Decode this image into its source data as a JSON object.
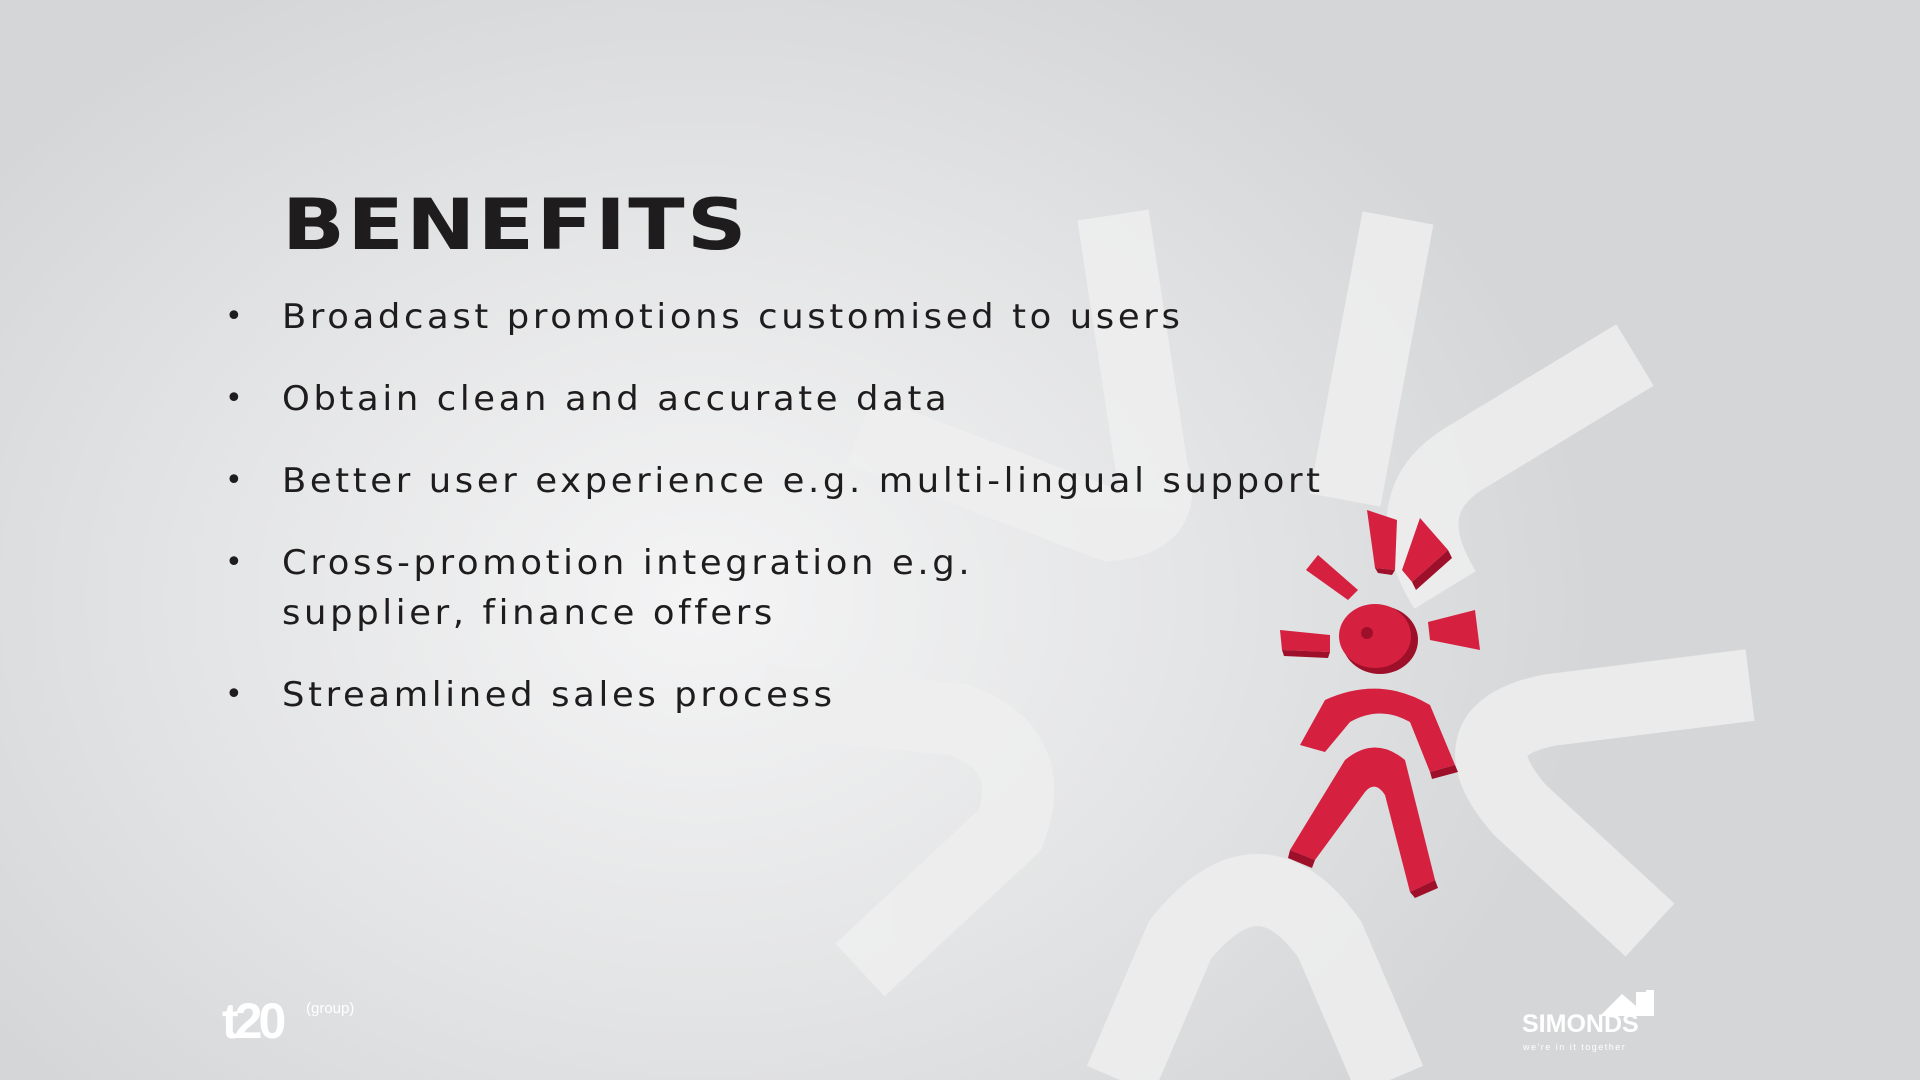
{
  "slide": {
    "title": "BENEFITS",
    "bullet_symbol": "•",
    "bullets": [
      "Broadcast promotions customised to users",
      "Obtain clean and accurate data",
      "Better user experience e.g. multi-lingual support",
      "Cross-promotion integration e.g.\nsupplier, finance offers",
      "Streamlined sales process"
    ]
  },
  "footer": {
    "left_logo": {
      "mark": "t20",
      "sub": "(group)"
    },
    "right_logo": {
      "name": "SIMONDS",
      "tagline": "we're in it together"
    }
  },
  "colors": {
    "text": "#1e1c1d",
    "mascot_red": "#d6203f",
    "mascot_shadow": "#9e0f29",
    "watermark": "#ececec",
    "logo": "#ffffff"
  }
}
